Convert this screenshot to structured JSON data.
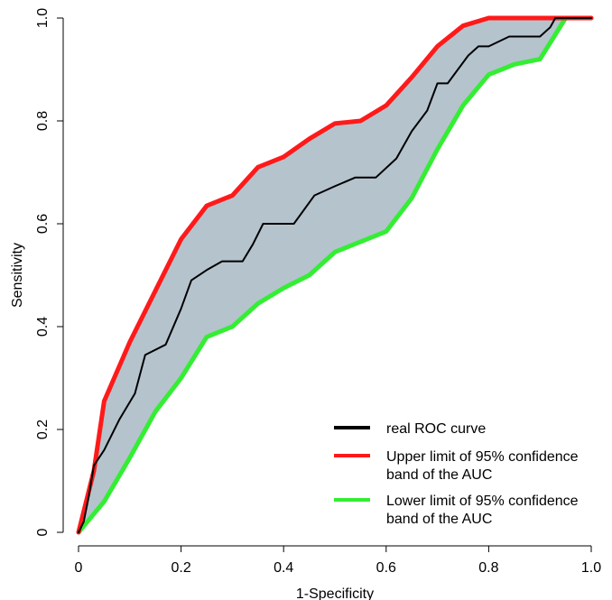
{
  "chart_data": {
    "type": "line",
    "xlabel": "1-Specificity",
    "ylabel": "Sensitivity",
    "xlim": [
      0,
      1
    ],
    "ylim": [
      0,
      1
    ],
    "x_ticks": [
      {
        "value": 0,
        "label": "0"
      },
      {
        "value": 0.2,
        "label": "0.2"
      },
      {
        "value": 0.4,
        "label": "0.4"
      },
      {
        "value": 0.6,
        "label": "0.6"
      },
      {
        "value": 0.8,
        "label": "0.8"
      },
      {
        "value": 1,
        "label": "1.0"
      }
    ],
    "y_ticks": [
      {
        "value": 0,
        "label": "0"
      },
      {
        "value": 0.2,
        "label": "0.2"
      },
      {
        "value": 0.4,
        "label": "0.4"
      },
      {
        "value": 0.6,
        "label": "0.6"
      },
      {
        "value": 0.8,
        "label": "0.8"
      },
      {
        "value": 1,
        "label": "1.0"
      }
    ],
    "grid": false,
    "legend_position": "bottom-right",
    "band_fill_color": "#b5c3cd",
    "series": [
      {
        "name": "real ROC curve",
        "color": "#000000",
        "points": [
          [
            0,
            0
          ],
          [
            0.01,
            0.02
          ],
          [
            0.02,
            0.07
          ],
          [
            0.03,
            0.13
          ],
          [
            0.05,
            0.16
          ],
          [
            0.08,
            0.22
          ],
          [
            0.11,
            0.27
          ],
          [
            0.13,
            0.345
          ],
          [
            0.17,
            0.365
          ],
          [
            0.2,
            0.435
          ],
          [
            0.22,
            0.49
          ],
          [
            0.25,
            0.51
          ],
          [
            0.28,
            0.527
          ],
          [
            0.3,
            0.527
          ],
          [
            0.32,
            0.527
          ],
          [
            0.34,
            0.56
          ],
          [
            0.36,
            0.6
          ],
          [
            0.38,
            0.6
          ],
          [
            0.42,
            0.6
          ],
          [
            0.46,
            0.655
          ],
          [
            0.5,
            0.673
          ],
          [
            0.54,
            0.69
          ],
          [
            0.58,
            0.69
          ],
          [
            0.62,
            0.727
          ],
          [
            0.65,
            0.78
          ],
          [
            0.68,
            0.82
          ],
          [
            0.7,
            0.873
          ],
          [
            0.72,
            0.873
          ],
          [
            0.76,
            0.927
          ],
          [
            0.78,
            0.945
          ],
          [
            0.8,
            0.945
          ],
          [
            0.84,
            0.964
          ],
          [
            0.88,
            0.964
          ],
          [
            0.9,
            0.964
          ],
          [
            0.92,
            0.982
          ],
          [
            0.93,
            1.0
          ],
          [
            1.0,
            1.0
          ]
        ]
      },
      {
        "name": "Upper limit of 95% confidence band of the AUC",
        "color": "#ff1a1a",
        "points": [
          [
            0,
            0
          ],
          [
            0.03,
            0.12
          ],
          [
            0.05,
            0.255
          ],
          [
            0.1,
            0.37
          ],
          [
            0.15,
            0.47
          ],
          [
            0.2,
            0.57
          ],
          [
            0.25,
            0.635
          ],
          [
            0.3,
            0.655
          ],
          [
            0.35,
            0.71
          ],
          [
            0.4,
            0.73
          ],
          [
            0.45,
            0.765
          ],
          [
            0.5,
            0.795
          ],
          [
            0.55,
            0.8
          ],
          [
            0.6,
            0.83
          ],
          [
            0.65,
            0.885
          ],
          [
            0.7,
            0.945
          ],
          [
            0.75,
            0.985
          ],
          [
            0.8,
            1.0
          ],
          [
            1.0,
            1.0
          ]
        ]
      },
      {
        "name": "Lower limit of 95% confidence band of the AUC",
        "color": "#33ee33",
        "points": [
          [
            0,
            0
          ],
          [
            0.05,
            0.06
          ],
          [
            0.1,
            0.145
          ],
          [
            0.15,
            0.235
          ],
          [
            0.2,
            0.3
          ],
          [
            0.25,
            0.38
          ],
          [
            0.3,
            0.4
          ],
          [
            0.35,
            0.445
          ],
          [
            0.4,
            0.475
          ],
          [
            0.45,
            0.5
          ],
          [
            0.5,
            0.545
          ],
          [
            0.55,
            0.565
          ],
          [
            0.6,
            0.585
          ],
          [
            0.65,
            0.65
          ],
          [
            0.7,
            0.745
          ],
          [
            0.75,
            0.83
          ],
          [
            0.8,
            0.89
          ],
          [
            0.85,
            0.91
          ],
          [
            0.9,
            0.92
          ],
          [
            0.95,
            1.0
          ],
          [
            1.0,
            1.0
          ]
        ]
      }
    ],
    "legend": [
      {
        "lines": [
          "real ROC curve"
        ],
        "color": "#000000"
      },
      {
        "lines": [
          "Upper limit of 95% confidence",
          "band of the AUC"
        ],
        "color": "#ff1a1a"
      },
      {
        "lines": [
          "Lower limit of 95% confidence",
          "band of the AUC"
        ],
        "color": "#33ee33"
      }
    ]
  }
}
